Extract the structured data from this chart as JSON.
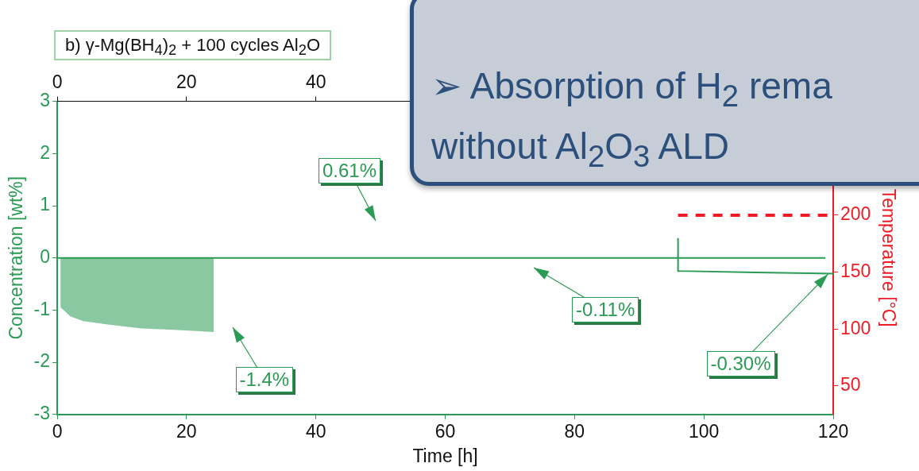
{
  "chart_data": {
    "type": "line",
    "title": "b) γ-Mg(BH$_{4}$)$_{2}$ + 100 cycles Al$_{2}$O",
    "xlabel": "Time [h]",
    "ylabel": "Concentration [wt%]",
    "y2label": "Temperature [°C]",
    "xlim": [
      0,
      120
    ],
    "xticks": [
      0,
      20,
      40,
      60,
      80,
      100,
      120
    ],
    "x2lim": [
      0,
      120
    ],
    "x2ticks": [
      0,
      20,
      40
    ],
    "ylim": [
      -3,
      3
    ],
    "yticks": [
      -3,
      -2,
      -1,
      0,
      1,
      2,
      3
    ],
    "y2lim": [
      25,
      300
    ],
    "y2ticks": [
      50,
      100,
      150,
      200
    ],
    "grid": false,
    "legend": false,
    "marker": "none",
    "series": [
      {
        "type": "area",
        "color": "#2a9a55",
        "x": [
          0.5,
          1,
          2,
          4,
          8,
          13,
          18,
          24.2
        ],
        "values": [
          -0.95,
          -1.0,
          -1.12,
          -1.21,
          -1.28,
          -1.35,
          -1.38,
          -1.42
        ]
      },
      {
        "type": "line",
        "color": "#2a9a55",
        "x": [
          0,
          118.8
        ],
        "values": [
          0,
          0
        ]
      },
      {
        "type": "line",
        "color": "#2a9a55",
        "x": [
          96,
          96,
          108,
          120
        ],
        "values": [
          0.37,
          -0.25,
          -0.28,
          -0.3
        ]
      },
      {
        "type": "line",
        "color": "#ee1c25",
        "axis": "y2",
        "line_style": "dashed",
        "x": [
          96,
          120
        ],
        "values": [
          200,
          200
        ]
      }
    ],
    "annotations": [
      "0.61%",
      "-0.11%",
      "-1.4%",
      {
        "text": "-0.30%",
        "x": 119.2,
        "y": -0.31
      },
      "➢ Absorption of H$_{2}$ rema",
      "without Al$_{2}$O$_{3}$ ALD"
    ]
  }
}
